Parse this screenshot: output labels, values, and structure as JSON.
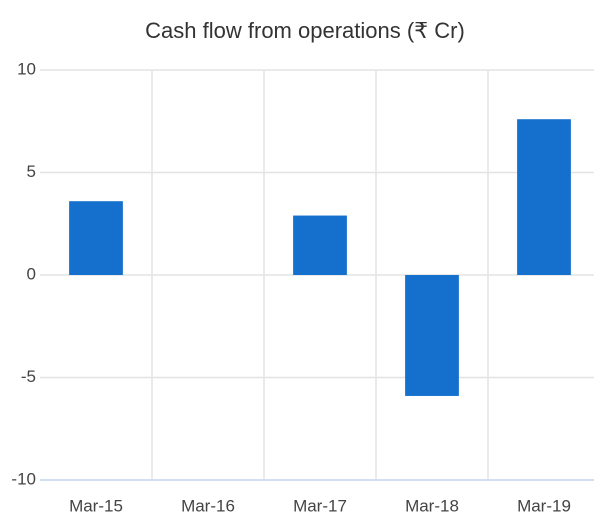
{
  "chart_data": {
    "type": "bar",
    "title": "Cash flow from operations (₹ Cr)",
    "categories": [
      "Mar-15",
      "Mar-16",
      "Mar-17",
      "Mar-18",
      "Mar-19"
    ],
    "values": [
      3.6,
      0,
      2.9,
      -5.9,
      7.6
    ],
    "color": "#1570cd",
    "ylim": [
      -10,
      10
    ],
    "yticks": [
      -10,
      -5,
      0,
      5,
      10
    ],
    "grid": true
  }
}
